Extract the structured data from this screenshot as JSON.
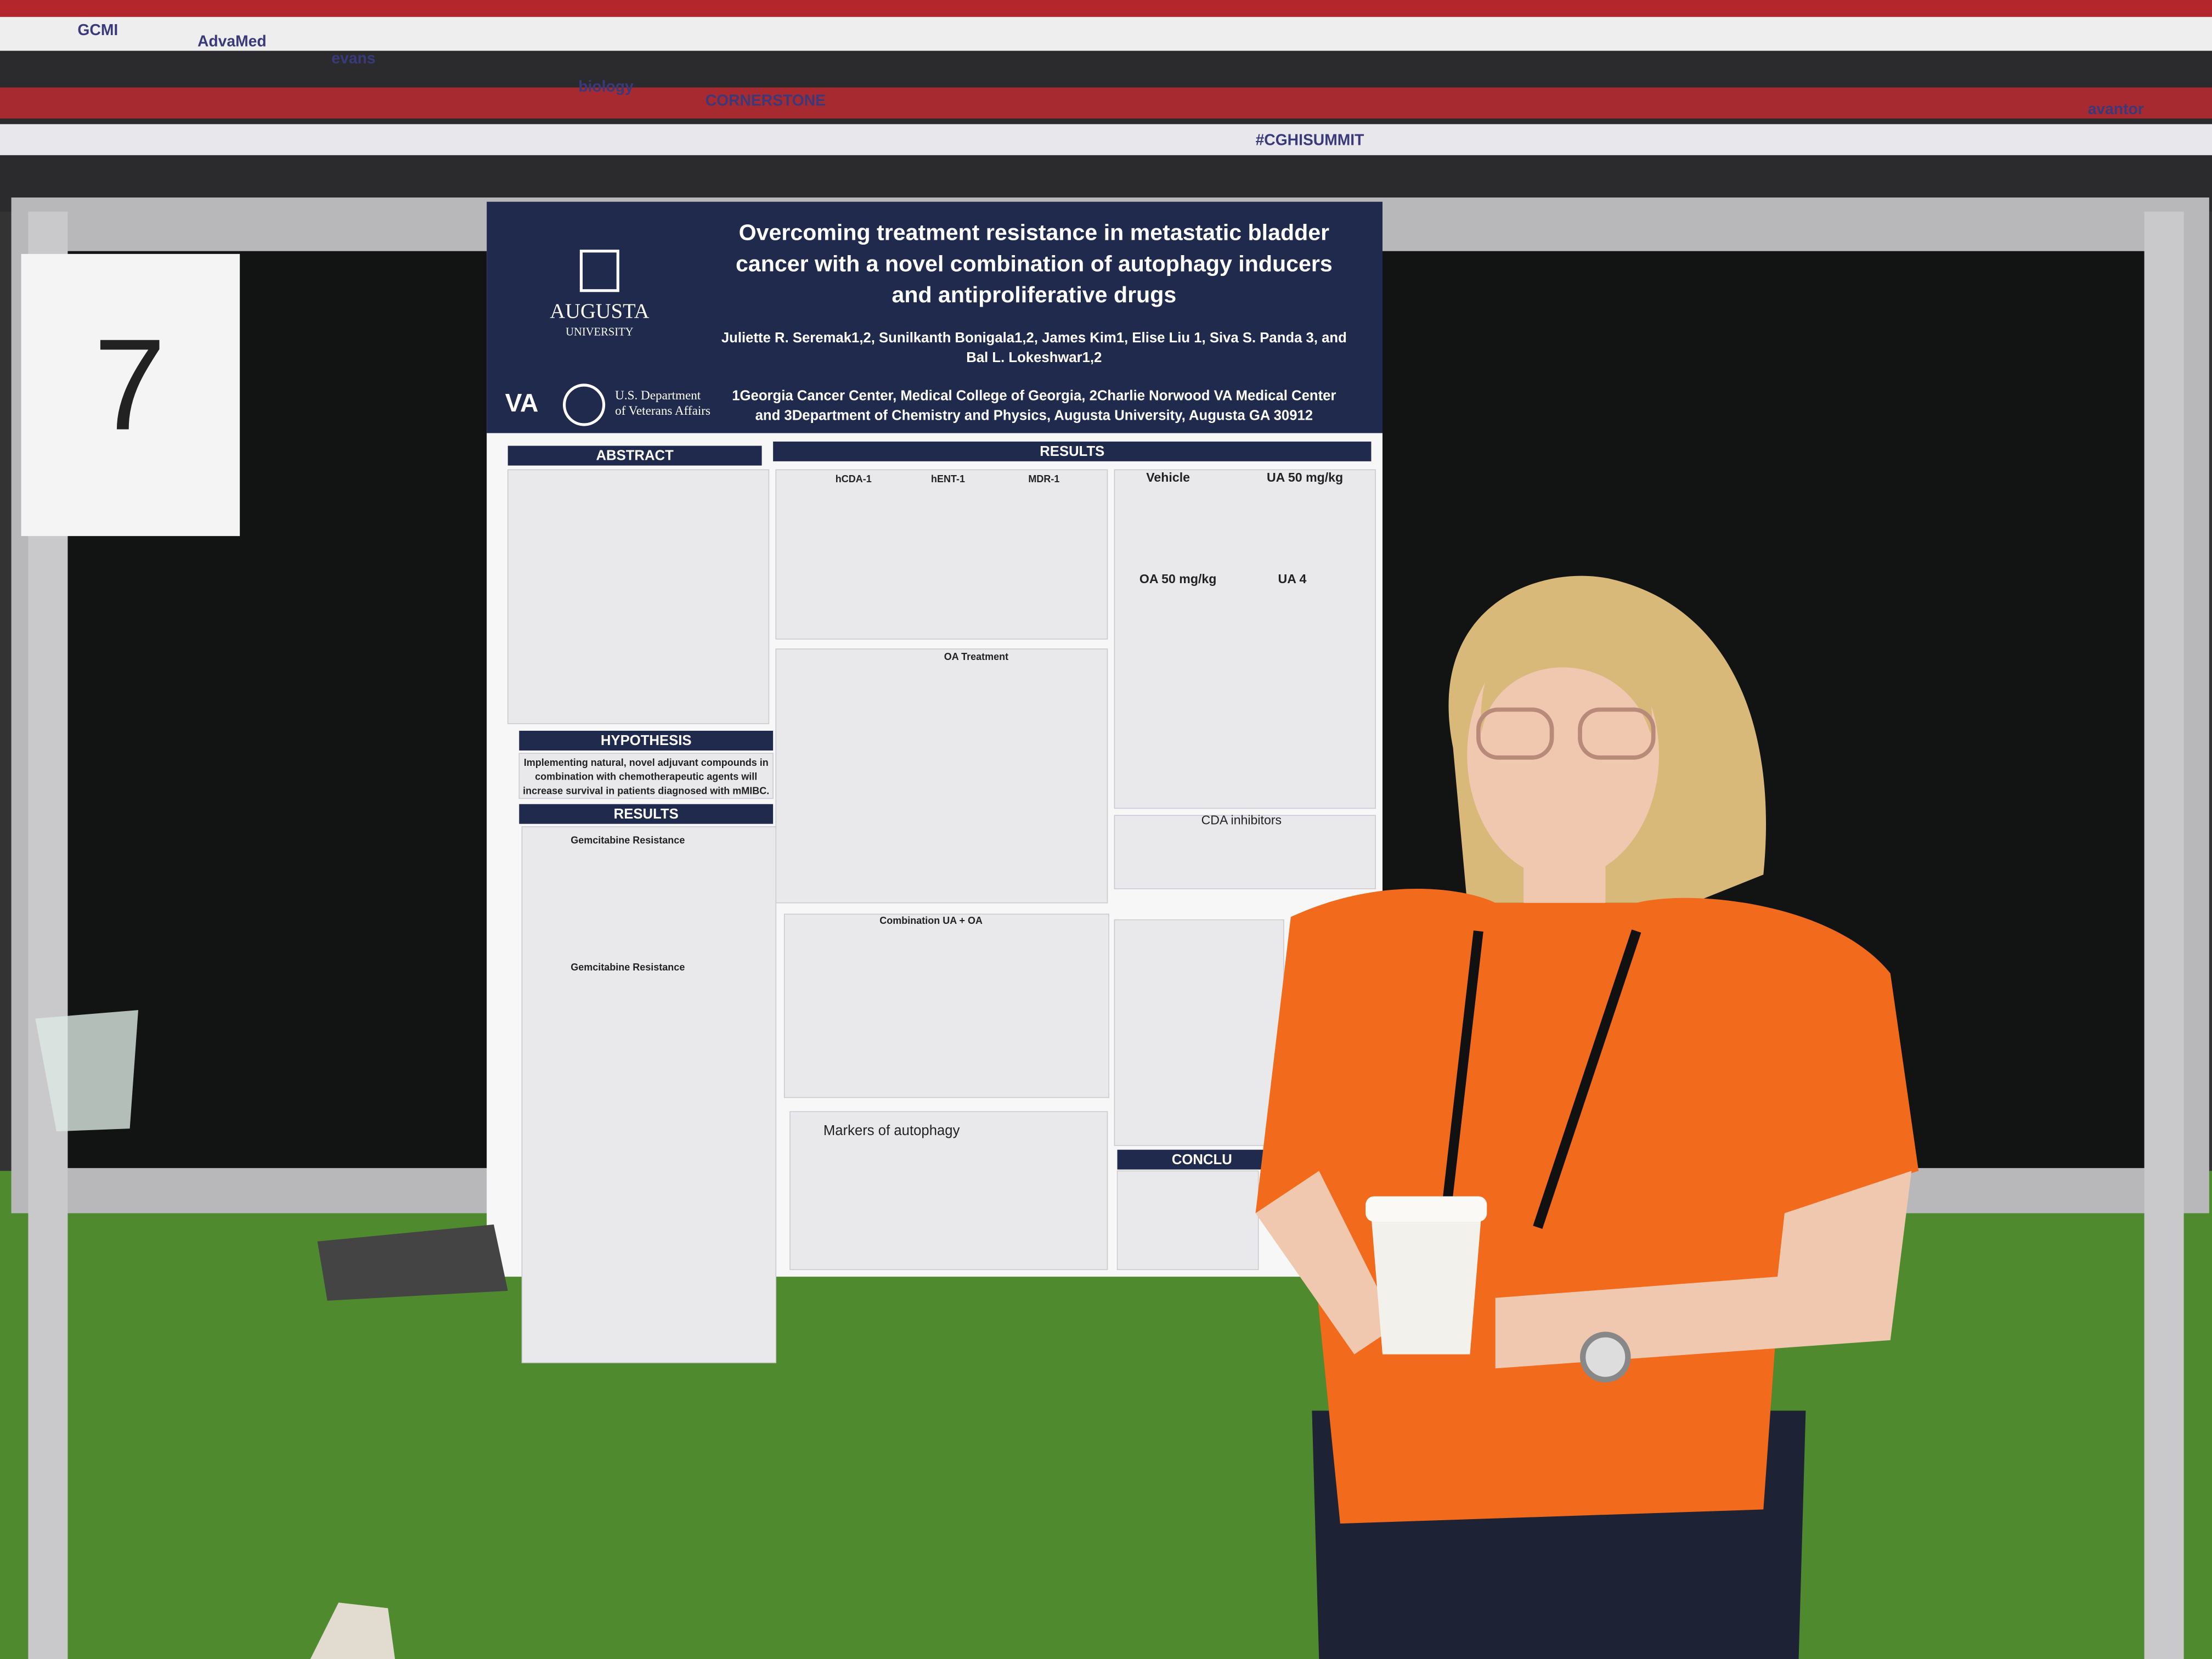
{
  "sign": {
    "number": "7"
  },
  "banners": [
    "GCMI",
    "AdvaMed",
    "evans",
    "biology",
    "CORNERSTONE",
    "#CGHISUMMIT",
    "avantor"
  ],
  "poster": {
    "university": [
      "AUGUSTA",
      "UNIVERSITY"
    ],
    "va": [
      "VA",
      "U.S. Department",
      "of Veterans Affairs"
    ],
    "title": [
      "Overcoming treatment resistance in metastatic bladder",
      "cancer with a novel combination of autophagy inducers",
      "and antiproliferative drugs"
    ],
    "authors": [
      "Juliette R. Seremak1,2, Sunilkanth Bonigala1,2, James Kim1, Elise Liu 1, Siva S. Panda 3, and",
      "Bal L. Lokeshwar1,2"
    ],
    "affiliations": [
      "1Georgia Cancer Center, Medical College of Georgia, 2Charlie Norwood VA Medical Center",
      "and 3Department of Chemistry and Physics, Augusta University, Augusta GA 30912"
    ],
    "sections": {
      "abstract": "ABSTRACT",
      "hypothesis": "HYPOTHESIS",
      "results_left": "RESULTS",
      "results_top": "RESULTS",
      "cda": "CDA inhibitors",
      "markers": "Markers of autophagy",
      "conclusions": "CONCLU"
    },
    "hypothesis_text": [
      "Implementing natural, novel adjuvant compounds in",
      "combination with chemotherapeutic agents will",
      "increase survival in patients diagnosed with mMIBC."
    ],
    "figure_labels": [
      "Gemcitabine Resistance",
      "Gemcitabine Resistance",
      "hCDA-1",
      "hENT-1",
      "MDR-1",
      "OA Treatment",
      "Combination UA + OA",
      "Vehicle",
      "UA 50 mg/kg",
      "OA 50 mg/kg",
      "UA 4"
    ]
  }
}
